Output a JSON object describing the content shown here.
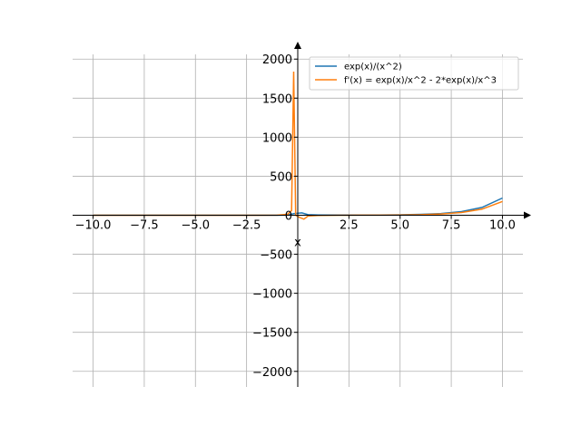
{
  "chart_data": {
    "type": "line",
    "xlabel": "x",
    "xlim": [
      -11,
      11
    ],
    "ylim": [
      -2200,
      2200
    ],
    "grid": true,
    "legend_placement": "top-right",
    "x_ticks": [
      -10.0,
      -7.5,
      -5.0,
      -2.5,
      0.0,
      2.5,
      5.0,
      7.5,
      10.0
    ],
    "x_tick_labels": [
      "−10.0",
      "−7.5",
      "−5.0",
      "−2.5",
      "0.0",
      "2.5",
      "5.0",
      "7.5",
      "10.0"
    ],
    "y_ticks": [
      -2000,
      -1500,
      -1000,
      -500,
      0,
      500,
      1000,
      1500,
      2000
    ],
    "y_tick_labels": [
      "−2000",
      "−1500",
      "−1000",
      "−500",
      "0",
      "500",
      "1000",
      "1500",
      "2000"
    ],
    "series": [
      {
        "name": "exp(x)/(x^2)",
        "color": "#1f77b4",
        "x": [
          -10,
          -8,
          -6,
          -4,
          -2,
          -1,
          -0.5,
          -0.2,
          0.2,
          0.5,
          1,
          2,
          3,
          4,
          5,
          6,
          7,
          8,
          9,
          10
        ],
        "y": [
          0,
          0,
          0,
          0,
          0.03,
          0.37,
          2.4,
          20,
          30,
          6.6,
          2.72,
          1.85,
          2.23,
          3.41,
          5.94,
          11.2,
          22.4,
          46.6,
          100,
          220
        ]
      },
      {
        "name": "f'(x) = exp(x)/x^2 - 2*exp(x)/x^3",
        "color": "#ff7f0e",
        "x": [
          -10,
          -8,
          -6,
          -4,
          -2,
          -1,
          -0.5,
          -0.3,
          -0.2,
          -0.1,
          0.1,
          0.3,
          0.5,
          1,
          2,
          3,
          4,
          5,
          6,
          7,
          8,
          9,
          10
        ],
        "y": [
          0,
          0,
          0,
          0,
          0.05,
          1.1,
          12,
          60,
          1840,
          0,
          -30,
          -50,
          -10,
          -2.72,
          0,
          0.74,
          1.71,
          3.56,
          7.5,
          16,
          35,
          78,
          176
        ]
      }
    ]
  }
}
